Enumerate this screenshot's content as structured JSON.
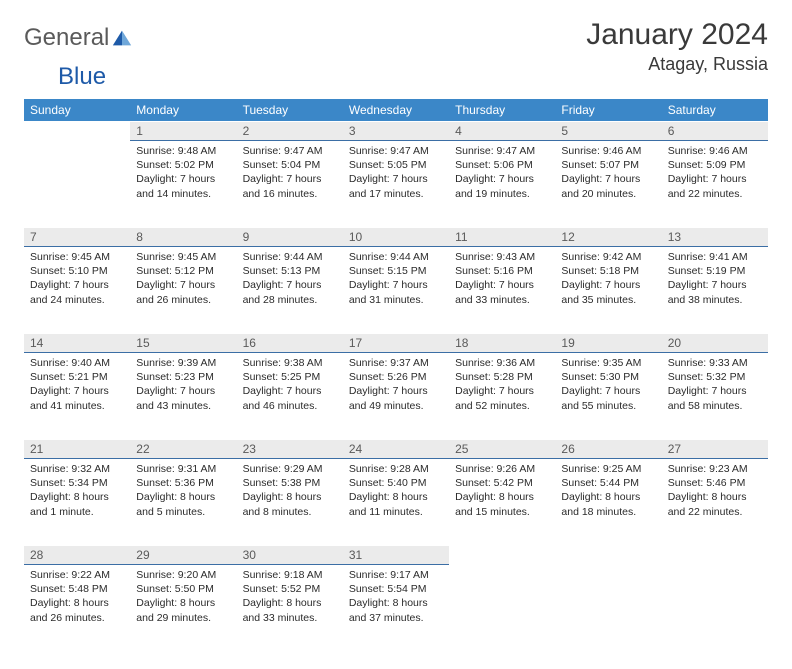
{
  "brand": {
    "word1": "General",
    "word2": "Blue"
  },
  "title": "January 2024",
  "location": "Atagay, Russia",
  "colors": {
    "header_bg": "#3b87c8",
    "header_text": "#ffffff",
    "daynum_bg": "#ebebeb",
    "daynum_border": "#3b6ea5",
    "text": "#2b2b2b",
    "brand_gray": "#5a5a5a",
    "brand_blue": "#1e5aa8"
  },
  "weekdays": [
    "Sunday",
    "Monday",
    "Tuesday",
    "Wednesday",
    "Thursday",
    "Friday",
    "Saturday"
  ],
  "weeks": [
    [
      null,
      {
        "n": "1",
        "sr": "9:48 AM",
        "ss": "5:02 PM",
        "dl": "7 hours and 14 minutes."
      },
      {
        "n": "2",
        "sr": "9:47 AM",
        "ss": "5:04 PM",
        "dl": "7 hours and 16 minutes."
      },
      {
        "n": "3",
        "sr": "9:47 AM",
        "ss": "5:05 PM",
        "dl": "7 hours and 17 minutes."
      },
      {
        "n": "4",
        "sr": "9:47 AM",
        "ss": "5:06 PM",
        "dl": "7 hours and 19 minutes."
      },
      {
        "n": "5",
        "sr": "9:46 AM",
        "ss": "5:07 PM",
        "dl": "7 hours and 20 minutes."
      },
      {
        "n": "6",
        "sr": "9:46 AM",
        "ss": "5:09 PM",
        "dl": "7 hours and 22 minutes."
      }
    ],
    [
      {
        "n": "7",
        "sr": "9:45 AM",
        "ss": "5:10 PM",
        "dl": "7 hours and 24 minutes."
      },
      {
        "n": "8",
        "sr": "9:45 AM",
        "ss": "5:12 PM",
        "dl": "7 hours and 26 minutes."
      },
      {
        "n": "9",
        "sr": "9:44 AM",
        "ss": "5:13 PM",
        "dl": "7 hours and 28 minutes."
      },
      {
        "n": "10",
        "sr": "9:44 AM",
        "ss": "5:15 PM",
        "dl": "7 hours and 31 minutes."
      },
      {
        "n": "11",
        "sr": "9:43 AM",
        "ss": "5:16 PM",
        "dl": "7 hours and 33 minutes."
      },
      {
        "n": "12",
        "sr": "9:42 AM",
        "ss": "5:18 PM",
        "dl": "7 hours and 35 minutes."
      },
      {
        "n": "13",
        "sr": "9:41 AM",
        "ss": "5:19 PM",
        "dl": "7 hours and 38 minutes."
      }
    ],
    [
      {
        "n": "14",
        "sr": "9:40 AM",
        "ss": "5:21 PM",
        "dl": "7 hours and 41 minutes."
      },
      {
        "n": "15",
        "sr": "9:39 AM",
        "ss": "5:23 PM",
        "dl": "7 hours and 43 minutes."
      },
      {
        "n": "16",
        "sr": "9:38 AM",
        "ss": "5:25 PM",
        "dl": "7 hours and 46 minutes."
      },
      {
        "n": "17",
        "sr": "9:37 AM",
        "ss": "5:26 PM",
        "dl": "7 hours and 49 minutes."
      },
      {
        "n": "18",
        "sr": "9:36 AM",
        "ss": "5:28 PM",
        "dl": "7 hours and 52 minutes."
      },
      {
        "n": "19",
        "sr": "9:35 AM",
        "ss": "5:30 PM",
        "dl": "7 hours and 55 minutes."
      },
      {
        "n": "20",
        "sr": "9:33 AM",
        "ss": "5:32 PM",
        "dl": "7 hours and 58 minutes."
      }
    ],
    [
      {
        "n": "21",
        "sr": "9:32 AM",
        "ss": "5:34 PM",
        "dl": "8 hours and 1 minute."
      },
      {
        "n": "22",
        "sr": "9:31 AM",
        "ss": "5:36 PM",
        "dl": "8 hours and 5 minutes."
      },
      {
        "n": "23",
        "sr": "9:29 AM",
        "ss": "5:38 PM",
        "dl": "8 hours and 8 minutes."
      },
      {
        "n": "24",
        "sr": "9:28 AM",
        "ss": "5:40 PM",
        "dl": "8 hours and 11 minutes."
      },
      {
        "n": "25",
        "sr": "9:26 AM",
        "ss": "5:42 PM",
        "dl": "8 hours and 15 minutes."
      },
      {
        "n": "26",
        "sr": "9:25 AM",
        "ss": "5:44 PM",
        "dl": "8 hours and 18 minutes."
      },
      {
        "n": "27",
        "sr": "9:23 AM",
        "ss": "5:46 PM",
        "dl": "8 hours and 22 minutes."
      }
    ],
    [
      {
        "n": "28",
        "sr": "9:22 AM",
        "ss": "5:48 PM",
        "dl": "8 hours and 26 minutes."
      },
      {
        "n": "29",
        "sr": "9:20 AM",
        "ss": "5:50 PM",
        "dl": "8 hours and 29 minutes."
      },
      {
        "n": "30",
        "sr": "9:18 AM",
        "ss": "5:52 PM",
        "dl": "8 hours and 33 minutes."
      },
      {
        "n": "31",
        "sr": "9:17 AM",
        "ss": "5:54 PM",
        "dl": "8 hours and 37 minutes."
      },
      null,
      null,
      null
    ]
  ],
  "labels": {
    "sunrise": "Sunrise:",
    "sunset": "Sunset:",
    "daylight": "Daylight:"
  }
}
